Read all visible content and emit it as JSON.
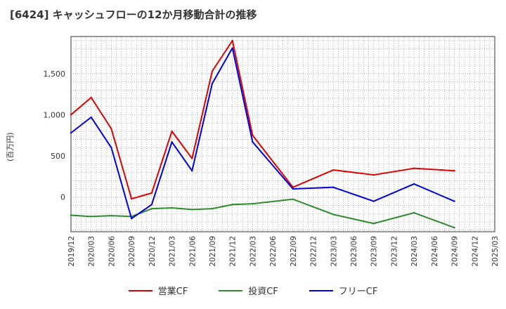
{
  "chart_data": {
    "type": "line",
    "title": "[6424]  キャッシュフローの12か月移動合計の推移",
    "ylabel": "(百万円)",
    "xlabel": "",
    "ylim": [
      -420,
      1950
    ],
    "yticks": [
      0,
      500,
      1000,
      1500
    ],
    "ytick_labels": [
      "0",
      "500",
      "1,000",
      "1,500"
    ],
    "categories": [
      "2019/12",
      "2020/03",
      "2020/06",
      "2020/09",
      "2020/12",
      "2021/03",
      "2021/06",
      "2021/09",
      "2021/12",
      "2022/03",
      "2022/06",
      "2022/09",
      "2022/12",
      "2023/03",
      "2023/06",
      "2023/09",
      "2023/12",
      "2024/03",
      "2024/06",
      "2024/09",
      "2024/12",
      "2025/03"
    ],
    "grid": true,
    "legend_position": "bottom",
    "series": [
      {
        "name": "営業CF",
        "color": "#e00000",
        "values": [
          1000,
          1210,
          830,
          -20,
          50,
          800,
          470,
          1530,
          1900,
          750,
          null,
          120,
          null,
          330,
          null,
          270,
          null,
          350,
          null,
          320,
          null,
          null
        ]
      },
      {
        "name": "投資CF",
        "color": "#2e8b2e",
        "values": [
          -220,
          -235,
          -225,
          -235,
          -140,
          -130,
          -150,
          -140,
          -90,
          -80,
          null,
          -25,
          null,
          -210,
          null,
          -320,
          null,
          -190,
          null,
          -370,
          null,
          null
        ]
      },
      {
        "name": "フリーCF",
        "color": "#0000dd",
        "values": [
          780,
          970,
          600,
          -260,
          -90,
          670,
          320,
          1380,
          1810,
          670,
          null,
          100,
          null,
          120,
          null,
          -50,
          null,
          160,
          null,
          -50,
          null,
          null
        ]
      }
    ]
  }
}
